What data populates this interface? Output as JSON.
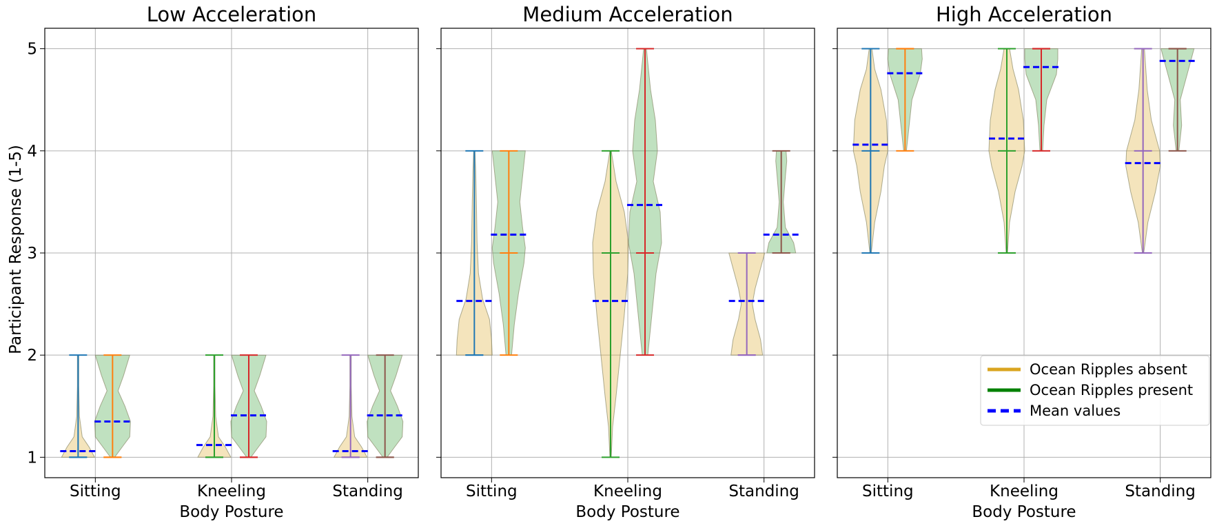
{
  "chart_data": {
    "type": "violin",
    "ylabel": "Participant Response (1-5)",
    "xlabel": "Body Posture",
    "categories": [
      "Sitting",
      "Kneeling",
      "Standing"
    ],
    "ylim": [
      0.8,
      5.2
    ],
    "yticks": [
      1,
      2,
      3,
      4,
      5
    ],
    "grid": true,
    "legend": {
      "location": "lower-right of last panel",
      "entries": [
        {
          "label": "Ocean Ripples absent",
          "style": "solid",
          "color": "#DAA520"
        },
        {
          "label": "Ocean Ripples present",
          "style": "solid",
          "color": "#008000"
        },
        {
          "label": "Mean values",
          "style": "dashed",
          "color": "#0000FF"
        }
      ]
    },
    "colors": {
      "absent_fill": "#DAA520",
      "present_fill": "#2E9A2E",
      "mean": "#0000FF",
      "grid": "#b0b0b0",
      "posture_line_colors": [
        [
          "#1f77b4",
          "#ff7f0e"
        ],
        [
          "#2ca02c",
          "#d62728"
        ],
        [
          "#9467bd",
          "#8c564b"
        ]
      ]
    },
    "panels": [
      {
        "title": "Low Acceleration",
        "series": [
          {
            "name": "Ocean Ripples absent",
            "min": [
              1,
              1,
              1
            ],
            "max": [
              2,
              2,
              2
            ],
            "median": [
              1,
              1,
              1
            ],
            "mean": [
              1.06,
              1.12,
              1.06
            ]
          },
          {
            "name": "Ocean Ripples present",
            "min": [
              1,
              1,
              1
            ],
            "max": [
              2,
              2,
              2
            ],
            "median": [
              1,
              1,
              1
            ],
            "mean": [
              1.35,
              1.41,
              1.41
            ]
          }
        ]
      },
      {
        "title": "Medium Acceleration",
        "series": [
          {
            "name": "Ocean Ripples absent",
            "min": [
              2,
              1,
              2
            ],
            "max": [
              4,
              4,
              3
            ],
            "median": [
              2,
              3,
              2
            ],
            "mean": [
              2.53,
              2.53,
              2.53
            ]
          },
          {
            "name": "Ocean Ripples present",
            "min": [
              2,
              2,
              3
            ],
            "max": [
              4,
              5,
              4
            ],
            "median": [
              3,
              3,
              3
            ],
            "mean": [
              3.18,
              3.47,
              3.18
            ]
          }
        ]
      },
      {
        "title": "High Acceleration",
        "series": [
          {
            "name": "Ocean Ripples absent",
            "min": [
              3,
              3,
              3
            ],
            "max": [
              5,
              5,
              5
            ],
            "median": [
              4,
              4,
              4
            ],
            "mean": [
              4.06,
              4.12,
              3.88
            ]
          },
          {
            "name": "Ocean Ripples present",
            "min": [
              4,
              4,
              4
            ],
            "max": [
              5,
              5,
              5
            ],
            "median": [
              5,
              5,
              5
            ],
            "mean": [
              4.76,
              4.82,
              4.88
            ]
          }
        ]
      }
    ]
  }
}
